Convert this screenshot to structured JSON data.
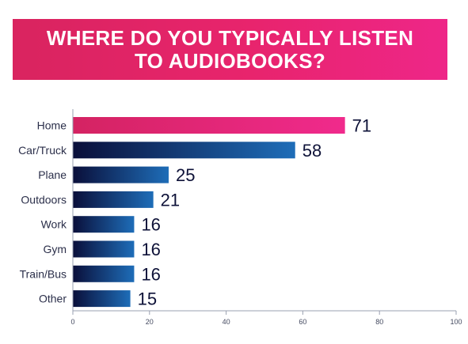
{
  "title": "WHERE DO YOU TYPICALLY LISTEN TO AUDIOBOOKS?",
  "colors": {
    "highlight_bar_start": "#d42362",
    "highlight_bar_end": "#f02a8c",
    "bar_start": "#0a0f3a",
    "bar_end": "#1e6db8",
    "banner": "#e8246d"
  },
  "chart_data": {
    "type": "bar",
    "orientation": "horizontal",
    "title": "WHERE DO YOU TYPICALLY LISTEN TO AUDIOBOOKS?",
    "categories": [
      "Home",
      "Car/Truck",
      "Plane",
      "Outdoors",
      "Work",
      "Gym",
      "Train/Bus",
      "Other"
    ],
    "values": [
      71,
      58,
      25,
      21,
      16,
      16,
      16,
      15
    ],
    "highlighted": [
      "Home"
    ],
    "xlim": [
      0,
      100
    ],
    "xticks": [
      0,
      20,
      40,
      60,
      80,
      100
    ],
    "grid": false,
    "legend": "none",
    "xlabel": "",
    "ylabel": ""
  }
}
